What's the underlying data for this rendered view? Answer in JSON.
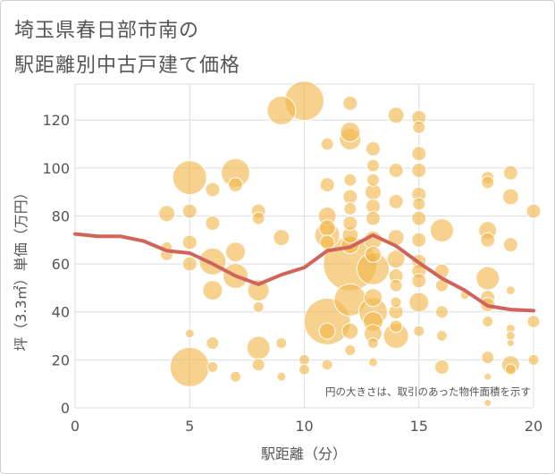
{
  "chart_title": {
    "line1": "埼玉県春日部市南の",
    "line2": "駅距離別中古戸建て価格"
  },
  "chart_data": {
    "type": "scatter",
    "title": "埼玉県春日部市南の駅距離別中古戸建て価格",
    "xlabel": "駅距離（分）",
    "ylabel": "坪（3.3㎡）単価（万円）",
    "xlim": [
      0,
      20
    ],
    "ylim": [
      0,
      135
    ],
    "x_ticks": [
      "0",
      "5",
      "10",
      "15",
      "20"
    ],
    "y_ticks": [
      "0",
      "20",
      "40",
      "60",
      "80",
      "100",
      "120"
    ],
    "x_tick_values": [
      0,
      5,
      10,
      15,
      20
    ],
    "y_tick_values": [
      0,
      20,
      40,
      60,
      80,
      100,
      120
    ],
    "grid": true,
    "annotation": "円の大きさは、取引のあった物件面積を示す",
    "colors": {
      "bubble": "#f2b64a",
      "trend": "#d0645a",
      "grid": "#d8dde6",
      "text": "#555555"
    },
    "bubbles": [
      {
        "x": 4,
        "y": 81,
        "s": 9
      },
      {
        "x": 4,
        "y": 64,
        "s": 7
      },
      {
        "x": 4,
        "y": 67,
        "s": 6
      },
      {
        "x": 5,
        "y": 96,
        "s": 19
      },
      {
        "x": 5,
        "y": 82,
        "s": 8
      },
      {
        "x": 5,
        "y": 69,
        "s": 8
      },
      {
        "x": 5,
        "y": 60,
        "s": 8
      },
      {
        "x": 5,
        "y": 31,
        "s": 5
      },
      {
        "x": 5,
        "y": 17,
        "s": 22
      },
      {
        "x": 6,
        "y": 91,
        "s": 8
      },
      {
        "x": 6,
        "y": 77,
        "s": 8
      },
      {
        "x": 6,
        "y": 61,
        "s": 15
      },
      {
        "x": 6,
        "y": 49,
        "s": 11
      },
      {
        "x": 6,
        "y": 27,
        "s": 7
      },
      {
        "x": 6,
        "y": 17,
        "s": 6
      },
      {
        "x": 7,
        "y": 98,
        "s": 16
      },
      {
        "x": 7,
        "y": 93,
        "s": 8
      },
      {
        "x": 7,
        "y": 65,
        "s": 11
      },
      {
        "x": 7,
        "y": 55,
        "s": 14
      },
      {
        "x": 7,
        "y": 13,
        "s": 6
      },
      {
        "x": 8,
        "y": 82,
        "s": 8
      },
      {
        "x": 8,
        "y": 79,
        "s": 7
      },
      {
        "x": 8,
        "y": 49,
        "s": 12
      },
      {
        "x": 8,
        "y": 42,
        "s": 6
      },
      {
        "x": 8,
        "y": 25,
        "s": 13
      },
      {
        "x": 8,
        "y": 18,
        "s": 7
      },
      {
        "x": 9,
        "y": 124,
        "s": 16
      },
      {
        "x": 9,
        "y": 71,
        "s": 9
      },
      {
        "x": 9,
        "y": 27,
        "s": 6
      },
      {
        "x": 9,
        "y": 13,
        "s": 5
      },
      {
        "x": 10,
        "y": 128,
        "s": 22
      },
      {
        "x": 10,
        "y": 20,
        "s": 6
      },
      {
        "x": 10,
        "y": 16,
        "s": 6
      },
      {
        "x": 11,
        "y": 110,
        "s": 7
      },
      {
        "x": 11,
        "y": 93,
        "s": 8
      },
      {
        "x": 11,
        "y": 80,
        "s": 10
      },
      {
        "x": 11,
        "y": 75,
        "s": 9
      },
      {
        "x": 11,
        "y": 72,
        "s": 14
      },
      {
        "x": 11,
        "y": 69,
        "s": 8
      },
      {
        "x": 11,
        "y": 36,
        "s": 26
      },
      {
        "x": 11,
        "y": 32,
        "s": 9
      },
      {
        "x": 11,
        "y": 18,
        "s": 6
      },
      {
        "x": 12,
        "y": 127,
        "s": 8
      },
      {
        "x": 12,
        "y": 115,
        "s": 11
      },
      {
        "x": 12,
        "y": 112,
        "s": 12
      },
      {
        "x": 12,
        "y": 95,
        "s": 7
      },
      {
        "x": 12,
        "y": 88,
        "s": 8
      },
      {
        "x": 12,
        "y": 83,
        "s": 7
      },
      {
        "x": 12,
        "y": 77,
        "s": 8
      },
      {
        "x": 12,
        "y": 72,
        "s": 9
      },
      {
        "x": 12,
        "y": 68,
        "s": 10
      },
      {
        "x": 12,
        "y": 60,
        "s": 30
      },
      {
        "x": 12,
        "y": 45,
        "s": 18
      },
      {
        "x": 12,
        "y": 32,
        "s": 9
      },
      {
        "x": 12,
        "y": 24,
        "s": 6
      },
      {
        "x": 13,
        "y": 108,
        "s": 8
      },
      {
        "x": 13,
        "y": 101,
        "s": 7
      },
      {
        "x": 13,
        "y": 95,
        "s": 7
      },
      {
        "x": 13,
        "y": 90,
        "s": 9
      },
      {
        "x": 13,
        "y": 84,
        "s": 8
      },
      {
        "x": 13,
        "y": 79,
        "s": 8
      },
      {
        "x": 13,
        "y": 70,
        "s": 10
      },
      {
        "x": 13,
        "y": 64,
        "s": 9
      },
      {
        "x": 13,
        "y": 58,
        "s": 18
      },
      {
        "x": 13,
        "y": 46,
        "s": 10
      },
      {
        "x": 13,
        "y": 40,
        "s": 16
      },
      {
        "x": 13,
        "y": 36,
        "s": 11
      },
      {
        "x": 13,
        "y": 31,
        "s": 10
      },
      {
        "x": 13,
        "y": 27,
        "s": 6
      },
      {
        "x": 13,
        "y": 19,
        "s": 5
      },
      {
        "x": 14,
        "y": 122,
        "s": 9
      },
      {
        "x": 14,
        "y": 99,
        "s": 8
      },
      {
        "x": 14,
        "y": 86,
        "s": 8
      },
      {
        "x": 14,
        "y": 71,
        "s": 9
      },
      {
        "x": 14,
        "y": 62,
        "s": 10
      },
      {
        "x": 14,
        "y": 55,
        "s": 8
      },
      {
        "x": 14,
        "y": 51,
        "s": 7
      },
      {
        "x": 14,
        "y": 44,
        "s": 6
      },
      {
        "x": 14,
        "y": 40,
        "s": 8
      },
      {
        "x": 14,
        "y": 34,
        "s": 7
      },
      {
        "x": 14,
        "y": 30,
        "s": 14
      },
      {
        "x": 15,
        "y": 121,
        "s": 8
      },
      {
        "x": 15,
        "y": 117,
        "s": 7
      },
      {
        "x": 15,
        "y": 106,
        "s": 8
      },
      {
        "x": 15,
        "y": 99,
        "s": 8
      },
      {
        "x": 15,
        "y": 89,
        "s": 8
      },
      {
        "x": 15,
        "y": 85,
        "s": 7
      },
      {
        "x": 15,
        "y": 79,
        "s": 8
      },
      {
        "x": 15,
        "y": 70,
        "s": 8
      },
      {
        "x": 15,
        "y": 61,
        "s": 8
      },
      {
        "x": 15,
        "y": 57,
        "s": 8
      },
      {
        "x": 15,
        "y": 53,
        "s": 8
      },
      {
        "x": 15,
        "y": 44,
        "s": 11
      },
      {
        "x": 15,
        "y": 32,
        "s": 6
      },
      {
        "x": 16,
        "y": 74,
        "s": 13
      },
      {
        "x": 16,
        "y": 57,
        "s": 8
      },
      {
        "x": 16,
        "y": 51,
        "s": 7
      },
      {
        "x": 16,
        "y": 40,
        "s": 7
      },
      {
        "x": 16,
        "y": 30,
        "s": 6
      },
      {
        "x": 16,
        "y": 17,
        "s": 8
      },
      {
        "x": 17,
        "y": 47,
        "s": 5
      },
      {
        "x": 18,
        "y": 96,
        "s": 7
      },
      {
        "x": 18,
        "y": 94,
        "s": 7
      },
      {
        "x": 18,
        "y": 74,
        "s": 10
      },
      {
        "x": 18,
        "y": 70,
        "s": 8
      },
      {
        "x": 18,
        "y": 54,
        "s": 13
      },
      {
        "x": 18,
        "y": 46,
        "s": 8
      },
      {
        "x": 18,
        "y": 43,
        "s": 8
      },
      {
        "x": 18,
        "y": 36,
        "s": 6
      },
      {
        "x": 18,
        "y": 21,
        "s": 7
      },
      {
        "x": 18,
        "y": 13,
        "s": 4
      },
      {
        "x": 18,
        "y": 2,
        "s": 4
      },
      {
        "x": 19,
        "y": 98,
        "s": 8
      },
      {
        "x": 19,
        "y": 88,
        "s": 9
      },
      {
        "x": 19,
        "y": 68,
        "s": 8
      },
      {
        "x": 19,
        "y": 49,
        "s": 5
      },
      {
        "x": 19,
        "y": 33,
        "s": 5
      },
      {
        "x": 19,
        "y": 30,
        "s": 5
      },
      {
        "x": 19,
        "y": 27,
        "s": 4
      },
      {
        "x": 19,
        "y": 18,
        "s": 10
      },
      {
        "x": 19,
        "y": 16,
        "s": 6
      },
      {
        "x": 20,
        "y": 82,
        "s": 8
      },
      {
        "x": 20,
        "y": 36,
        "s": 7
      },
      {
        "x": 20,
        "y": 20,
        "s": 6
      }
    ],
    "trend": {
      "x": [
        0,
        1,
        2,
        3,
        4,
        5,
        6,
        7,
        8,
        9,
        10,
        11,
        12,
        13,
        14,
        15,
        16,
        17,
        18,
        19,
        20
      ],
      "y": [
        72.5,
        71.5,
        71.5,
        69.5,
        65.5,
        64.5,
        60,
        55,
        51.5,
        55.5,
        58.5,
        65.5,
        67,
        72,
        67.5,
        60.5,
        54,
        49,
        42.5,
        41,
        40.5
      ]
    }
  }
}
